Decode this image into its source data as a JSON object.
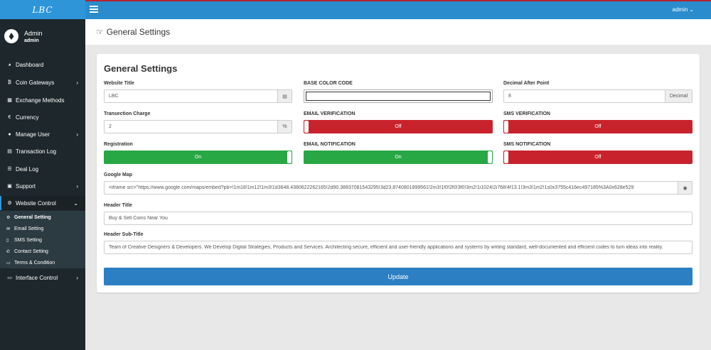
{
  "brand": "LBC",
  "header": {
    "user_menu": "admin"
  },
  "profile": {
    "name": "Admin",
    "role": "admin"
  },
  "sidebar": {
    "items": [
      {
        "label": "Dashboard",
        "icon": "dashboard-icon"
      },
      {
        "label": "Coin Gateways",
        "icon": "bitcoin-icon"
      },
      {
        "label": "Exchange Methods",
        "icon": "bank-icon"
      },
      {
        "label": "Currency",
        "icon": "euro-icon"
      },
      {
        "label": "Manage User",
        "icon": "users-icon"
      },
      {
        "label": "Transaction Log",
        "icon": "log-icon"
      },
      {
        "label": "Deal Log",
        "icon": "list-icon"
      },
      {
        "label": "Support",
        "icon": "support-icon"
      },
      {
        "label": "Website Control",
        "icon": "gears-icon"
      },
      {
        "label": "Interface Control",
        "icon": "desktop-icon"
      }
    ],
    "sub_items": [
      {
        "label": "General Setting",
        "icon": "gears-icon"
      },
      {
        "label": "Email Setting",
        "icon": "envelope-icon"
      },
      {
        "label": "SMS Setting",
        "icon": "mobile-icon"
      },
      {
        "label": "Contact Setting",
        "icon": "phone-icon"
      },
      {
        "label": "Terms & Condition",
        "icon": "file-icon"
      }
    ]
  },
  "page": {
    "title": "General Settings"
  },
  "form": {
    "title": "General Settings",
    "website_title": {
      "label": "Website Title",
      "value": "LBC"
    },
    "base_color": {
      "label": "BASE COLOR CODE",
      "value": ""
    },
    "decimal": {
      "label": "Decimal After Point",
      "value": "8",
      "addon": "Decimal"
    },
    "charge": {
      "label": "Transection Charge",
      "value": "2",
      "addon": "%"
    },
    "email_verification": {
      "label": "EMAIL VERIFICATION",
      "state": "Off"
    },
    "sms_verification": {
      "label": "SMS VERIFICATION",
      "state": "Off"
    },
    "registration": {
      "label": "Registration",
      "state": "On"
    },
    "email_notification": {
      "label": "EMAIL NOTIFICATION",
      "state": "On"
    },
    "sms_notification": {
      "label": "SMS NOTIFICATION",
      "state": "Off"
    },
    "google_map": {
      "label": "Google Map",
      "value": "<iframe src=\"https://www.google.com/maps/embed?pb=!1m18!1m12!1m3!1d3648.4380622262165!2d90.38837081543295!3d23.8740801899561!2m3!1f0!2f0!3f0!3m2!1i1024!2i768!4f13.1!3m3!1m2!1s0x3755c416ec497185%3A0x628e529"
    },
    "header_title": {
      "label": "Header Title",
      "value": "Buy & Sell Coins Near You"
    },
    "header_subtitle": {
      "label": "Header Sub-Title",
      "value": "Team of Creative Designers & Developers. We Develop Digital Strategies, Products and Services. Architecting secure, efficient and user-friendly applications and systems by writing standard, well-documented and efficient codes to turn ideas into reality."
    },
    "submit": "Update"
  },
  "colors": {
    "topbar": "#2a8ccc",
    "sidebar": "#1e282c",
    "on": "#28a745",
    "off": "#c8232c",
    "button": "#2b7fc2"
  }
}
